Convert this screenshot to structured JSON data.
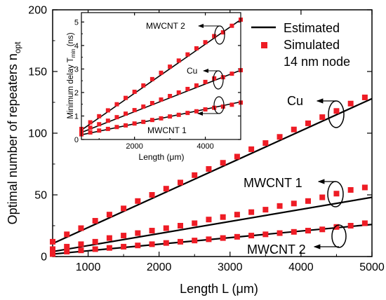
{
  "chart_data": [
    {
      "type": "scatter",
      "xlabel": "Length L (μm)",
      "ylabel_main": "Optimal number of repeaters n",
      "ylabel_sub": "opt",
      "xlim": [
        500,
        5000
      ],
      "ylim": [
        0,
        200
      ],
      "xticks": [
        "1000",
        "2000",
        "3000",
        "4000",
        "5000"
      ],
      "yticks": [
        "0",
        "50",
        "100",
        "150",
        "200"
      ],
      "legend": {
        "position": "top-right",
        "estimated": "Estimated",
        "simulated": "Simulated",
        "node": "14 nm node"
      },
      "annotations": {
        "cu": "Cu",
        "mwcnt1": "MWCNT 1",
        "mwcnt2": "MWCNT 2"
      },
      "marker_color": "#ee1c25",
      "line_color": "#000000",
      "series": [
        {
          "name": "Cu",
          "line": [
            [
              500,
              10.5
            ],
            [
              5000,
              128
            ]
          ],
          "points": [
            [
              500,
              12
            ],
            [
              700,
              18
            ],
            [
              900,
              23
            ],
            [
              1100,
              29
            ],
            [
              1300,
              34
            ],
            [
              1500,
              39
            ],
            [
              1700,
              45
            ],
            [
              1900,
              50
            ],
            [
              2100,
              55
            ],
            [
              2300,
              60
            ],
            [
              2500,
              66
            ],
            [
              2700,
              71
            ],
            [
              2900,
              76
            ],
            [
              3100,
              81
            ],
            [
              3300,
              87
            ],
            [
              3500,
              92
            ],
            [
              3700,
              97
            ],
            [
              3900,
              103
            ],
            [
              4100,
              108
            ],
            [
              4300,
              113
            ],
            [
              4500,
              118
            ],
            [
              4700,
              124
            ],
            [
              4900,
              129
            ]
          ]
        },
        {
          "name": "MWCNT 1",
          "line": [
            [
              500,
              4
            ],
            [
              5000,
              48
            ]
          ],
          "points": [
            [
              500,
              6
            ],
            [
              700,
              8
            ],
            [
              900,
              10
            ],
            [
              1100,
              12
            ],
            [
              1300,
              15
            ],
            [
              1500,
              17
            ],
            [
              1700,
              19
            ],
            [
              1900,
              21
            ],
            [
              2100,
              23
            ],
            [
              2300,
              25
            ],
            [
              2500,
              27
            ],
            [
              2700,
              30
            ],
            [
              2900,
              32
            ],
            [
              3100,
              34
            ],
            [
              3300,
              36
            ],
            [
              3500,
              38
            ],
            [
              3700,
              41
            ],
            [
              3900,
              43
            ],
            [
              4100,
              45
            ],
            [
              4300,
              48
            ],
            [
              4500,
              51
            ],
            [
              4700,
              54
            ],
            [
              4900,
              56
            ]
          ]
        },
        {
          "name": "MWCNT 2",
          "line": [
            [
              500,
              2
            ],
            [
              5000,
              26
            ]
          ],
          "points": [
            [
              500,
              2
            ],
            [
              700,
              4
            ],
            [
              900,
              5
            ],
            [
              1100,
              6
            ],
            [
              1300,
              7
            ],
            [
              1500,
              8
            ],
            [
              1700,
              9
            ],
            [
              1900,
              10
            ],
            [
              2100,
              11
            ],
            [
              2300,
              12
            ],
            [
              2500,
              13
            ],
            [
              2700,
              14
            ],
            [
              2900,
              15
            ],
            [
              3100,
              16
            ],
            [
              3300,
              17
            ],
            [
              3500,
              18
            ],
            [
              3700,
              19
            ],
            [
              3900,
              20
            ],
            [
              4100,
              21
            ],
            [
              4300,
              22
            ],
            [
              4500,
              24
            ],
            [
              4700,
              25
            ],
            [
              4900,
              27
            ]
          ]
        }
      ]
    },
    {
      "type": "scatter",
      "xlabel": "Length (μm)",
      "ylabel_main": "Minimum delay T",
      "ylabel_sub": "min",
      "ylabel_unit": " (ns)",
      "xlim": [
        500,
        5000
      ],
      "ylim": [
        0,
        5.4
      ],
      "xticks": [
        "2000",
        "4000"
      ],
      "yticks": [
        "0",
        "1",
        "2",
        "3",
        "4",
        "5"
      ],
      "annotations": {
        "mwcnt2": "MWCNT 2",
        "cu": "Cu",
        "mwcnt1": "MWCNT 1"
      },
      "marker_color": "#ee1c25",
      "line_color": "#000000",
      "series": [
        {
          "name": "MWCNT 2",
          "line": [
            [
              500,
              0.4
            ],
            [
              5000,
              5.1
            ]
          ],
          "points": [
            [
              500,
              0.45
            ],
            [
              750,
              0.73
            ],
            [
              1000,
              0.99
            ],
            [
              1250,
              1.24
            ],
            [
              1500,
              1.5
            ],
            [
              1750,
              1.77
            ],
            [
              2000,
              2.03
            ],
            [
              2250,
              2.3
            ],
            [
              2500,
              2.57
            ],
            [
              2750,
              2.84
            ],
            [
              3000,
              3.1
            ],
            [
              3250,
              3.36
            ],
            [
              3500,
              3.62
            ],
            [
              3750,
              3.88
            ],
            [
              4000,
              4.14
            ],
            [
              4250,
              4.4
            ],
            [
              4500,
              4.56
            ],
            [
              4750,
              4.84
            ],
            [
              5000,
              5.1
            ]
          ]
        },
        {
          "name": "Cu",
          "line": [
            [
              500,
              0.3
            ],
            [
              5000,
              2.95
            ]
          ],
          "points": [
            [
              500,
              0.35
            ],
            [
              750,
              0.5
            ],
            [
              1000,
              0.65
            ],
            [
              1250,
              0.8
            ],
            [
              1500,
              0.95
            ],
            [
              1750,
              1.1
            ],
            [
              2000,
              1.25
            ],
            [
              2250,
              1.4
            ],
            [
              2500,
              1.55
            ],
            [
              2750,
              1.7
            ],
            [
              3000,
              1.85
            ],
            [
              3250,
              2.0
            ],
            [
              3500,
              2.15
            ],
            [
              3750,
              2.3
            ],
            [
              4000,
              2.45
            ],
            [
              4250,
              2.6
            ],
            [
              4500,
              2.65
            ],
            [
              4750,
              2.8
            ],
            [
              5000,
              2.95
            ]
          ]
        },
        {
          "name": "MWCNT 1",
          "line": [
            [
              500,
              0.2
            ],
            [
              5000,
              1.6
            ]
          ],
          "points": [
            [
              500,
              0.22
            ],
            [
              750,
              0.3
            ],
            [
              1000,
              0.38
            ],
            [
              1250,
              0.45
            ],
            [
              1500,
              0.53
            ],
            [
              1750,
              0.6
            ],
            [
              2000,
              0.68
            ],
            [
              2250,
              0.75
            ],
            [
              2500,
              0.83
            ],
            [
              2750,
              0.9
            ],
            [
              3000,
              0.98
            ],
            [
              3250,
              1.05
            ],
            [
              3500,
              1.13
            ],
            [
              3750,
              1.2
            ],
            [
              4000,
              1.28
            ],
            [
              4250,
              1.35
            ],
            [
              4500,
              1.4
            ],
            [
              4750,
              1.48
            ],
            [
              5000,
              1.57
            ]
          ]
        }
      ]
    }
  ]
}
